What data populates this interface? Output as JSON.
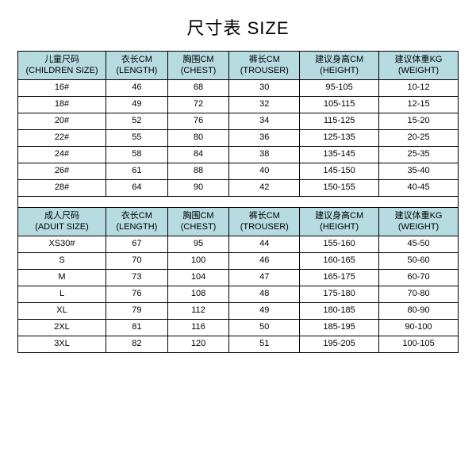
{
  "title": "尺寸表 SIZE",
  "colors": {
    "header_bg": "#b6dbe1",
    "border": "#000000",
    "text": "#000000",
    "bg": "#ffffff"
  },
  "typography": {
    "title_fontsize": 22,
    "cell_fontsize": 11
  },
  "children_table": {
    "type": "table",
    "columns": [
      {
        "cn": "儿童尺码",
        "en": "(CHILDREN SIZE)"
      },
      {
        "cn": "衣长CM",
        "en": "(LENGTH)"
      },
      {
        "cn": "胸围CM",
        "en": "(CHEST)"
      },
      {
        "cn": "裤长CM",
        "en": "(TROUSER)"
      },
      {
        "cn": "建议身高CM",
        "en": "(HEIGHT)"
      },
      {
        "cn": "建议体重KG",
        "en": "(WEIGHT)"
      }
    ],
    "rows": [
      [
        "16#",
        "46",
        "68",
        "30",
        "95-105",
        "10-12"
      ],
      [
        "18#",
        "49",
        "72",
        "32",
        "105-115",
        "12-15"
      ],
      [
        "20#",
        "52",
        "76",
        "34",
        "115-125",
        "15-20"
      ],
      [
        "22#",
        "55",
        "80",
        "36",
        "125-135",
        "20-25"
      ],
      [
        "24#",
        "58",
        "84",
        "38",
        "135-145",
        "25-35"
      ],
      [
        "26#",
        "61",
        "88",
        "40",
        "145-150",
        "35-40"
      ],
      [
        "28#",
        "64",
        "90",
        "42",
        "150-155",
        "40-45"
      ]
    ]
  },
  "adult_table": {
    "type": "table",
    "columns": [
      {
        "cn": "成人尺码",
        "en": "(ADUIT SIZE)"
      },
      {
        "cn": "衣长CM",
        "en": "(LENGTH)"
      },
      {
        "cn": "胸围CM",
        "en": "(CHEST)"
      },
      {
        "cn": "裤长CM",
        "en": "(TROUSER)"
      },
      {
        "cn": "建议身高CM",
        "en": "(HEIGHT)"
      },
      {
        "cn": "建议体重KG",
        "en": "(WEIGHT)"
      }
    ],
    "rows": [
      [
        "XS30#",
        "67",
        "95",
        "44",
        "155-160",
        "45-50"
      ],
      [
        "S",
        "70",
        "100",
        "46",
        "160-165",
        "50-60"
      ],
      [
        "M",
        "73",
        "104",
        "47",
        "165-175",
        "60-70"
      ],
      [
        "L",
        "76",
        "108",
        "48",
        "175-180",
        "70-80"
      ],
      [
        "XL",
        "79",
        "112",
        "49",
        "180-185",
        "80-90"
      ],
      [
        "2XL",
        "81",
        "116",
        "50",
        "185-195",
        "90-100"
      ],
      [
        "3XL",
        "82",
        "120",
        "51",
        "195-205",
        "100-105"
      ]
    ]
  }
}
